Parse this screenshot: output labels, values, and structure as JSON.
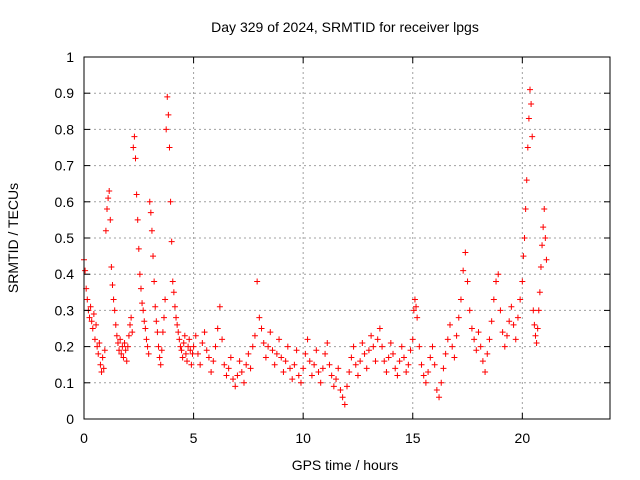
{
  "chart_data": {
    "type": "scatter",
    "title": "Day 329 of 2024, SRMTID for receiver lpgs",
    "xlabel": "GPS time / hours",
    "ylabel": "SRMTID / TECUs",
    "xlim": [
      0,
      24
    ],
    "ylim": [
      0,
      1
    ],
    "xticks": [
      0,
      5,
      10,
      15,
      20
    ],
    "yticks": [
      0,
      0.1,
      0.2,
      0.3,
      0.4,
      0.5,
      0.6,
      0.7,
      0.8,
      0.9,
      1
    ],
    "xtick_labels": [
      "0",
      "5",
      "10",
      "15",
      "20"
    ],
    "ytick_labels": [
      "0",
      "0.1",
      "0.2",
      "0.3",
      "0.4",
      "0.5",
      "0.6",
      "0.7",
      "0.8",
      "0.9",
      "1"
    ],
    "grid": true,
    "marker": "+",
    "marker_color": "#ff0000",
    "series": [
      {
        "name": "SRMTID",
        "points": [
          [
            0.0,
            0.44
          ],
          [
            0.05,
            0.41
          ],
          [
            0.1,
            0.36
          ],
          [
            0.15,
            0.33
          ],
          [
            0.2,
            0.3
          ],
          [
            0.25,
            0.28
          ],
          [
            0.3,
            0.31
          ],
          [
            0.35,
            0.27
          ],
          [
            0.4,
            0.25
          ],
          [
            0.45,
            0.29
          ],
          [
            0.5,
            0.22
          ],
          [
            0.55,
            0.26
          ],
          [
            0.6,
            0.2
          ],
          [
            0.65,
            0.18
          ],
          [
            0.7,
            0.21
          ],
          [
            0.75,
            0.15
          ],
          [
            0.8,
            0.13
          ],
          [
            0.85,
            0.17
          ],
          [
            0.9,
            0.14
          ],
          [
            0.95,
            0.19
          ],
          [
            1.0,
            0.52
          ],
          [
            1.05,
            0.58
          ],
          [
            1.1,
            0.61
          ],
          [
            1.15,
            0.63
          ],
          [
            1.2,
            0.55
          ],
          [
            1.25,
            0.42
          ],
          [
            1.3,
            0.37
          ],
          [
            1.35,
            0.33
          ],
          [
            1.4,
            0.3
          ],
          [
            1.45,
            0.26
          ],
          [
            1.5,
            0.23
          ],
          [
            1.55,
            0.21
          ],
          [
            1.6,
            0.19
          ],
          [
            1.65,
            0.22
          ],
          [
            1.7,
            0.18
          ],
          [
            1.75,
            0.2
          ],
          [
            1.8,
            0.17
          ],
          [
            1.85,
            0.21
          ],
          [
            1.9,
            0.19
          ],
          [
            1.95,
            0.16
          ],
          [
            2.0,
            0.2
          ],
          [
            2.05,
            0.23
          ],
          [
            2.1,
            0.26
          ],
          [
            2.15,
            0.28
          ],
          [
            2.2,
            0.24
          ],
          [
            2.25,
            0.75
          ],
          [
            2.3,
            0.78
          ],
          [
            2.35,
            0.72
          ],
          [
            2.4,
            0.62
          ],
          [
            2.45,
            0.55
          ],
          [
            2.5,
            0.47
          ],
          [
            2.55,
            0.4
          ],
          [
            2.6,
            0.36
          ],
          [
            2.65,
            0.32
          ],
          [
            2.7,
            0.3
          ],
          [
            2.75,
            0.27
          ],
          [
            2.8,
            0.25
          ],
          [
            2.85,
            0.22
          ],
          [
            2.9,
            0.2
          ],
          [
            2.95,
            0.18
          ],
          [
            3.0,
            0.6
          ],
          [
            3.05,
            0.57
          ],
          [
            3.1,
            0.52
          ],
          [
            3.15,
            0.45
          ],
          [
            3.2,
            0.38
          ],
          [
            3.25,
            0.31
          ],
          [
            3.3,
            0.27
          ],
          [
            3.35,
            0.24
          ],
          [
            3.4,
            0.2
          ],
          [
            3.45,
            0.17
          ],
          [
            3.5,
            0.15
          ],
          [
            3.55,
            0.19
          ],
          [
            3.6,
            0.24
          ],
          [
            3.65,
            0.28
          ],
          [
            3.7,
            0.33
          ],
          [
            3.75,
            0.8
          ],
          [
            3.8,
            0.89
          ],
          [
            3.85,
            0.84
          ],
          [
            3.9,
            0.75
          ],
          [
            3.95,
            0.6
          ],
          [
            4.0,
            0.49
          ],
          [
            4.05,
            0.38
          ],
          [
            4.1,
            0.35
          ],
          [
            4.15,
            0.31
          ],
          [
            4.2,
            0.28
          ],
          [
            4.25,
            0.26
          ],
          [
            4.3,
            0.24
          ],
          [
            4.35,
            0.22
          ],
          [
            4.4,
            0.2
          ],
          [
            4.45,
            0.19
          ],
          [
            4.5,
            0.17
          ],
          [
            4.55,
            0.21
          ],
          [
            4.6,
            0.23
          ],
          [
            4.65,
            0.18
          ],
          [
            4.7,
            0.16
          ],
          [
            4.75,
            0.2
          ],
          [
            4.8,
            0.22
          ],
          [
            4.85,
            0.19
          ],
          [
            4.9,
            0.15
          ],
          [
            4.95,
            0.18
          ],
          [
            5.0,
            0.2
          ],
          [
            5.1,
            0.23
          ],
          [
            5.2,
            0.18
          ],
          [
            5.3,
            0.15
          ],
          [
            5.4,
            0.21
          ],
          [
            5.5,
            0.24
          ],
          [
            5.6,
            0.19
          ],
          [
            5.7,
            0.17
          ],
          [
            5.8,
            0.13
          ],
          [
            5.9,
            0.16
          ],
          [
            6.0,
            0.2
          ],
          [
            6.1,
            0.25
          ],
          [
            6.2,
            0.31
          ],
          [
            6.3,
            0.22
          ],
          [
            6.4,
            0.15
          ],
          [
            6.5,
            0.12
          ],
          [
            6.6,
            0.14
          ],
          [
            6.7,
            0.17
          ],
          [
            6.8,
            0.11
          ],
          [
            6.9,
            0.09
          ],
          [
            7.0,
            0.12
          ],
          [
            7.1,
            0.16
          ],
          [
            7.2,
            0.13
          ],
          [
            7.3,
            0.1
          ],
          [
            7.4,
            0.15
          ],
          [
            7.5,
            0.18
          ],
          [
            7.6,
            0.14
          ],
          [
            7.7,
            0.2
          ],
          [
            7.8,
            0.23
          ],
          [
            7.9,
            0.38
          ],
          [
            8.0,
            0.28
          ],
          [
            8.1,
            0.25
          ],
          [
            8.2,
            0.21
          ],
          [
            8.3,
            0.17
          ],
          [
            8.4,
            0.2
          ],
          [
            8.5,
            0.24
          ],
          [
            8.6,
            0.19
          ],
          [
            8.7,
            0.15
          ],
          [
            8.8,
            0.18
          ],
          [
            8.9,
            0.22
          ],
          [
            9.0,
            0.17
          ],
          [
            9.1,
            0.13
          ],
          [
            9.2,
            0.16
          ],
          [
            9.3,
            0.2
          ],
          [
            9.4,
            0.14
          ],
          [
            9.5,
            0.11
          ],
          [
            9.6,
            0.15
          ],
          [
            9.7,
            0.19
          ],
          [
            9.8,
            0.12
          ],
          [
            9.9,
            0.1
          ],
          [
            10.0,
            0.14
          ],
          [
            10.1,
            0.18
          ],
          [
            10.2,
            0.22
          ],
          [
            10.3,
            0.16
          ],
          [
            10.4,
            0.12
          ],
          [
            10.5,
            0.15
          ],
          [
            10.6,
            0.19
          ],
          [
            10.7,
            0.13
          ],
          [
            10.8,
            0.1
          ],
          [
            10.9,
            0.14
          ],
          [
            11.0,
            0.18
          ],
          [
            11.1,
            0.21
          ],
          [
            11.2,
            0.15
          ],
          [
            11.3,
            0.12
          ],
          [
            11.4,
            0.09
          ],
          [
            11.5,
            0.11
          ],
          [
            11.6,
            0.14
          ],
          [
            11.7,
            0.08
          ],
          [
            11.8,
            0.06
          ],
          [
            11.9,
            0.04
          ],
          [
            12.0,
            0.09
          ],
          [
            12.1,
            0.13
          ],
          [
            12.2,
            0.17
          ],
          [
            12.3,
            0.2
          ],
          [
            12.4,
            0.15
          ],
          [
            12.5,
            0.12
          ],
          [
            12.6,
            0.16
          ],
          [
            12.7,
            0.21
          ],
          [
            12.8,
            0.18
          ],
          [
            12.9,
            0.14
          ],
          [
            13.0,
            0.19
          ],
          [
            13.1,
            0.23
          ],
          [
            13.2,
            0.2
          ],
          [
            13.3,
            0.16
          ],
          [
            13.4,
            0.22
          ],
          [
            13.5,
            0.25
          ],
          [
            13.6,
            0.2
          ],
          [
            13.7,
            0.16
          ],
          [
            13.8,
            0.13
          ],
          [
            13.9,
            0.17
          ],
          [
            14.0,
            0.21
          ],
          [
            14.1,
            0.18
          ],
          [
            14.2,
            0.14
          ],
          [
            14.3,
            0.12
          ],
          [
            14.4,
            0.16
          ],
          [
            14.5,
            0.2
          ],
          [
            14.6,
            0.17
          ],
          [
            14.7,
            0.13
          ],
          [
            14.8,
            0.15
          ],
          [
            14.9,
            0.19
          ],
          [
            15.0,
            0.22
          ],
          [
            15.05,
            0.3
          ],
          [
            15.1,
            0.33
          ],
          [
            15.15,
            0.31
          ],
          [
            15.2,
            0.28
          ],
          [
            15.3,
            0.2
          ],
          [
            15.4,
            0.15
          ],
          [
            15.5,
            0.12
          ],
          [
            15.6,
            0.1
          ],
          [
            15.7,
            0.13
          ],
          [
            15.8,
            0.17
          ],
          [
            15.9,
            0.2
          ],
          [
            16.0,
            0.15
          ],
          [
            16.1,
            0.08
          ],
          [
            16.2,
            0.06
          ],
          [
            16.3,
            0.1
          ],
          [
            16.4,
            0.14
          ],
          [
            16.5,
            0.18
          ],
          [
            16.6,
            0.22
          ],
          [
            16.7,
            0.26
          ],
          [
            16.8,
            0.2
          ],
          [
            16.9,
            0.17
          ],
          [
            17.0,
            0.23
          ],
          [
            17.1,
            0.28
          ],
          [
            17.2,
            0.33
          ],
          [
            17.3,
            0.41
          ],
          [
            17.4,
            0.46
          ],
          [
            17.5,
            0.38
          ],
          [
            17.6,
            0.3
          ],
          [
            17.7,
            0.25
          ],
          [
            17.8,
            0.22
          ],
          [
            17.9,
            0.19
          ],
          [
            18.0,
            0.24
          ],
          [
            18.1,
            0.2
          ],
          [
            18.2,
            0.16
          ],
          [
            18.3,
            0.13
          ],
          [
            18.4,
            0.18
          ],
          [
            18.5,
            0.22
          ],
          [
            18.6,
            0.27
          ],
          [
            18.7,
            0.33
          ],
          [
            18.8,
            0.38
          ],
          [
            18.9,
            0.4
          ],
          [
            19.0,
            0.3
          ],
          [
            19.1,
            0.24
          ],
          [
            19.2,
            0.2
          ],
          [
            19.3,
            0.23
          ],
          [
            19.4,
            0.27
          ],
          [
            19.5,
            0.31
          ],
          [
            19.6,
            0.26
          ],
          [
            19.7,
            0.22
          ],
          [
            19.8,
            0.28
          ],
          [
            19.9,
            0.33
          ],
          [
            20.0,
            0.38
          ],
          [
            20.05,
            0.45
          ],
          [
            20.1,
            0.5
          ],
          [
            20.15,
            0.58
          ],
          [
            20.2,
            0.66
          ],
          [
            20.25,
            0.75
          ],
          [
            20.3,
            0.83
          ],
          [
            20.35,
            0.91
          ],
          [
            20.4,
            0.87
          ],
          [
            20.45,
            0.78
          ],
          [
            20.5,
            0.3
          ],
          [
            20.55,
            0.26
          ],
          [
            20.6,
            0.23
          ],
          [
            20.65,
            0.21
          ],
          [
            20.7,
            0.25
          ],
          [
            20.75,
            0.3
          ],
          [
            20.8,
            0.35
          ],
          [
            20.85,
            0.42
          ],
          [
            20.9,
            0.48
          ],
          [
            20.95,
            0.53
          ],
          [
            21.0,
            0.58
          ],
          [
            21.05,
            0.5
          ],
          [
            21.1,
            0.44
          ]
        ]
      }
    ]
  }
}
